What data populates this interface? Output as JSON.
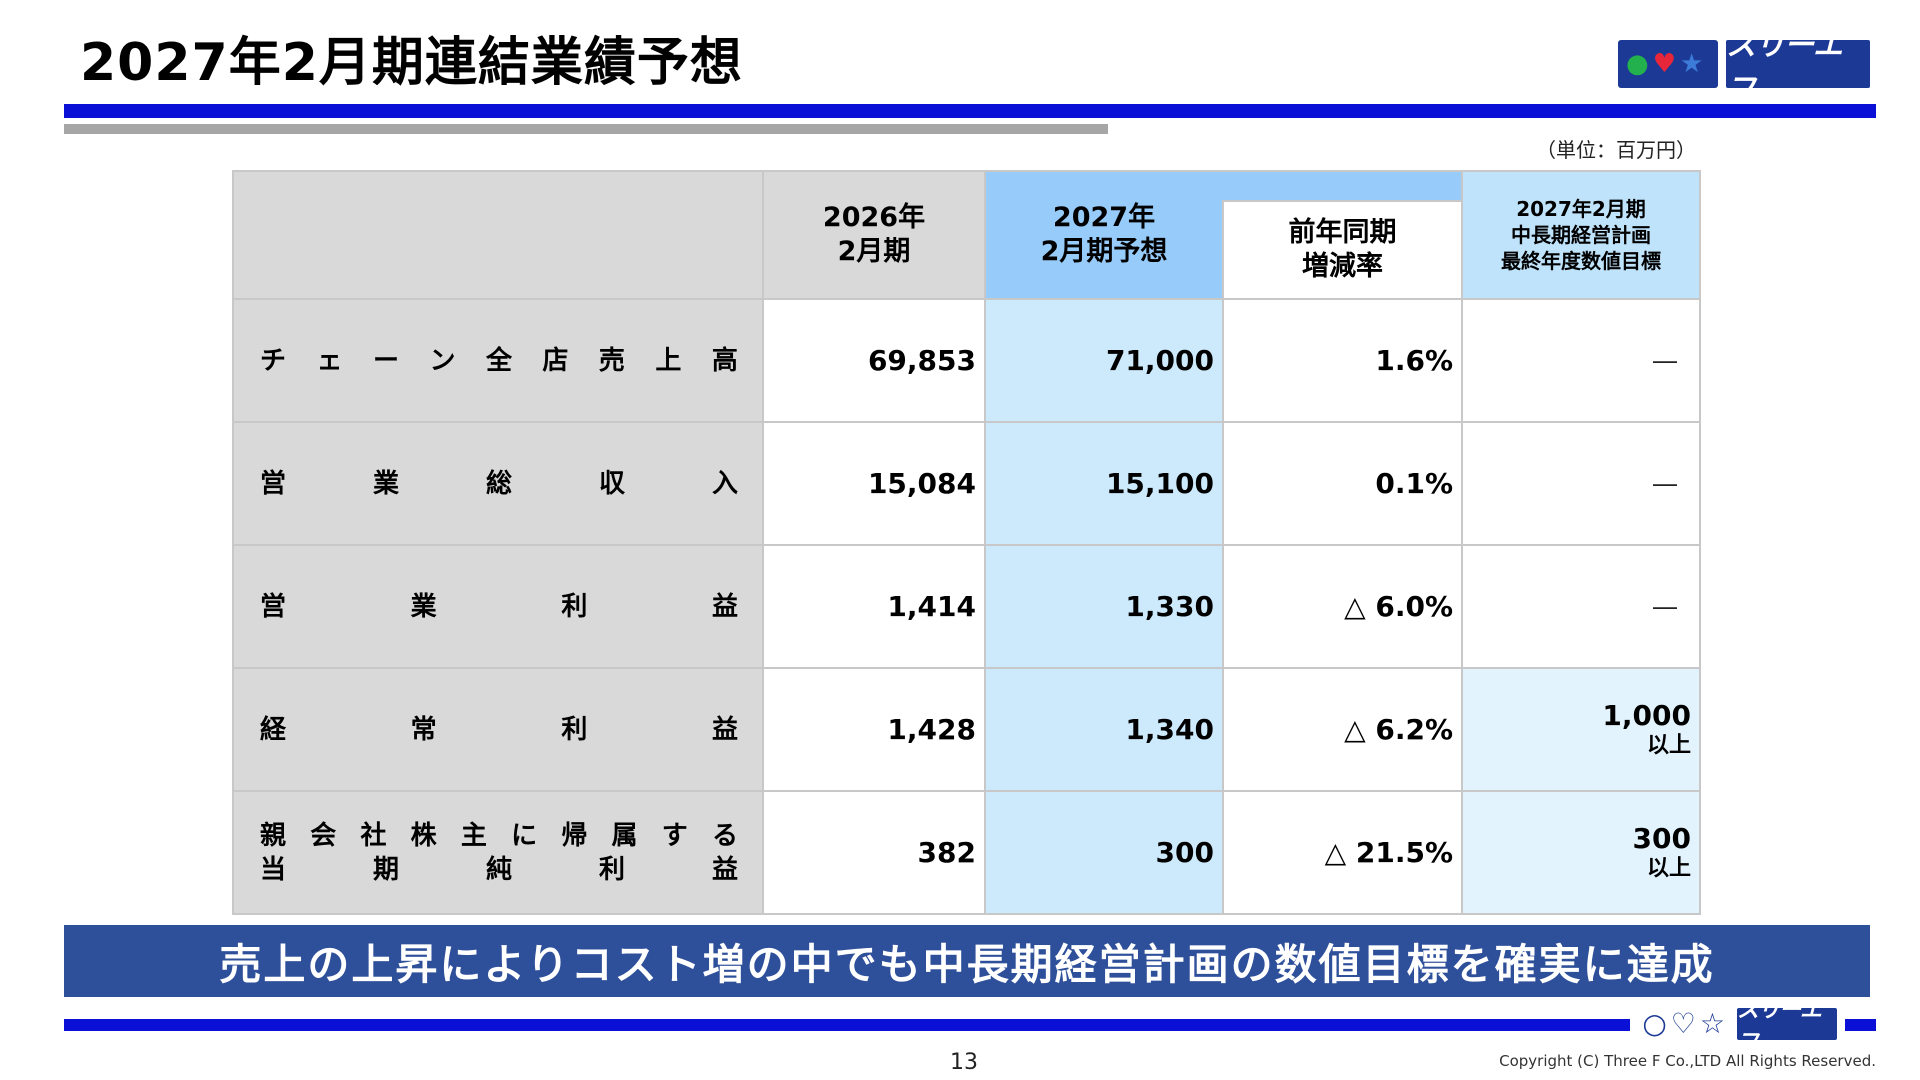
{
  "title": "2027年2月期連結業績予想",
  "logo": {
    "circle_green": "●",
    "circle_heart": "♥",
    "circle_star": "★",
    "circle_open": "○",
    "heart_open": "♡",
    "star_open": "☆",
    "text": "スリーエフ"
  },
  "unit": "（単位：百万円）",
  "header": {
    "col_2026": [
      "2026年",
      "2月期"
    ],
    "col_2027": [
      "2027年",
      "2月期予想"
    ],
    "col_rate": [
      "前年同期",
      "増減率"
    ],
    "col_plan": [
      "2027年2月期",
      "中長期経営計画",
      "最終年度数値目標"
    ]
  },
  "rows": [
    {
      "label_lines": [
        [
          "チ",
          "ェ",
          "ー",
          "ン",
          "全",
          "店",
          "売",
          "上",
          "高"
        ]
      ],
      "v2026": "69,853",
      "v2027": "71,000",
      "rate": "1.6%",
      "plan": "―",
      "plan_sub": ""
    },
    {
      "label_lines": [
        [
          "営",
          "業",
          "総",
          "収",
          "入"
        ]
      ],
      "v2026": "15,084",
      "v2027": "15,100",
      "rate": "0.1%",
      "plan": "―",
      "plan_sub": ""
    },
    {
      "label_lines": [
        [
          "営",
          "業",
          "利",
          "益"
        ]
      ],
      "v2026": "1,414",
      "v2027": "1,330",
      "rate": "△ 6.0%",
      "plan": "―",
      "plan_sub": ""
    },
    {
      "label_lines": [
        [
          "経",
          "常",
          "利",
          "益"
        ]
      ],
      "v2026": "1,428",
      "v2027": "1,340",
      "rate": "△ 6.2%",
      "plan": "1,000",
      "plan_sub": "以上"
    },
    {
      "label_lines": [
        [
          "親",
          "会",
          "社",
          "株",
          "主",
          "に",
          "帰",
          "属",
          "す",
          "る"
        ],
        [
          "当",
          "期",
          "純",
          "利",
          "益"
        ]
      ],
      "v2026": "382",
      "v2027": "300",
      "rate": "△ 21.5%",
      "plan": "300",
      "plan_sub": "以上"
    }
  ],
  "banner": "売上の上昇によりコスト増の中でも中長期経営計画の数値目標を確実に達成",
  "page_number": "13",
  "copyright": "Copyright (C) Three F Co.,LTD All Rights Reserved."
}
